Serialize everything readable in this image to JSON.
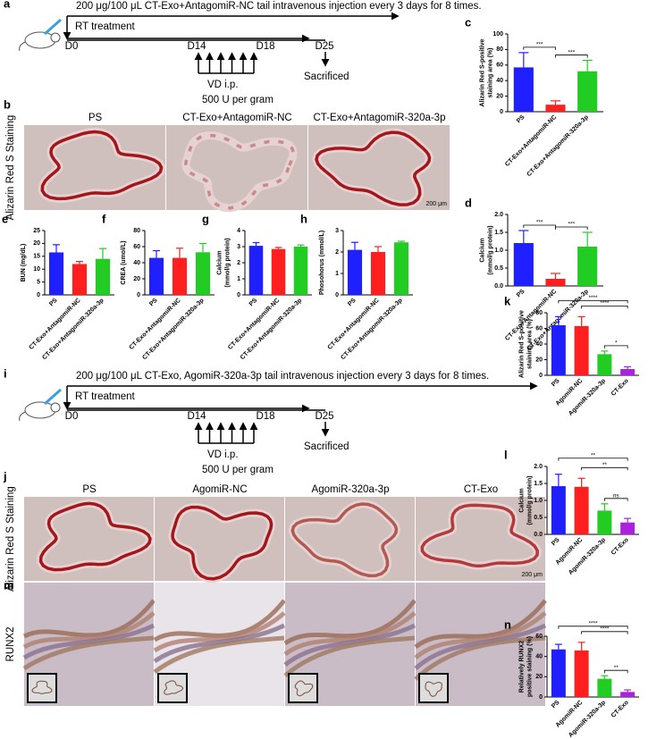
{
  "panel_a": {
    "label": "a",
    "injection": "200 μg/100 μL CT-Exo+AntagomiR-NC tail intravenous injection every 3 days for 8 times.",
    "treatment": "RT treatment",
    "days": [
      "D0",
      "D14",
      "D18",
      "D25"
    ],
    "vd": "VD i.p.",
    "dose": "500 U per gram",
    "end": "Sacrificed"
  },
  "panel_b": {
    "label": "b",
    "side": "Alizarin Red S Staining",
    "titles": [
      "PS",
      "CT-Exo+AntagomiR-NC",
      "CT-Exo+AntagomiR-320a-3p"
    ],
    "scale": "200 μm"
  },
  "panel_i": {
    "label": "i",
    "injection": "200 μg/100 μL CT-Exo, AgomiR-320a-3p tail intravenous injection every 3 days for 8 times.",
    "treatment": "RT treatment",
    "days": [
      "D0",
      "D14",
      "D18",
      "D25"
    ],
    "vd": "VD i.p.",
    "dose": "500 U per gram",
    "end": "Sacrificed"
  },
  "panel_j": {
    "label": "j",
    "side": "Alizarin Red S Staining",
    "titles": [
      "PS",
      "AgomiR-NC",
      "AgomiR-320a-3p",
      "CT-Exo"
    ],
    "scale": "200 μm"
  },
  "panel_m": {
    "label": "m",
    "side": "RUNX2"
  },
  "chart_data": [
    {
      "type": "bar",
      "label": "c",
      "ylabel": [
        "Alizarin Red S-positive",
        "staining area (%)"
      ],
      "categories": [
        "PS",
        "CT-Exo+AntagomiR-NC",
        "CT-Exo+AntagomiR-320a-3p"
      ],
      "values": [
        57,
        9,
        52
      ],
      "errors": [
        19,
        5,
        14
      ],
      "colors": [
        "#1f1fff",
        "#ff1f1f",
        "#22cc22"
      ],
      "ylim": [
        0,
        100
      ],
      "yticks": [
        0,
        20,
        40,
        60,
        80,
        100
      ],
      "comparisons": [
        {
          "groups": [
            "PS",
            "CT-Exo+AntagomiR-NC"
          ],
          "label": "***"
        },
        {
          "groups": [
            "CT-Exo+AntagomiR-NC",
            "CT-Exo+AntagomiR-320a-3p"
          ],
          "label": "***"
        }
      ]
    },
    {
      "type": "bar",
      "label": "d",
      "ylabel": [
        "Calcium",
        "(mmol/g protein)"
      ],
      "categories": [
        "PS",
        "CT-Exo+AntagomiR-NC",
        "CT-Exo+AntagomiR-320a-3p"
      ],
      "values": [
        1.2,
        0.2,
        1.1
      ],
      "errors": [
        0.35,
        0.15,
        0.4
      ],
      "colors": [
        "#1f1fff",
        "#ff1f1f",
        "#22cc22"
      ],
      "ylim": [
        0,
        2
      ],
      "yticks": [
        {
          "value": 0,
          "label": "0.0"
        },
        0.5,
        {
          "value": 1,
          "label": "1.0"
        },
        1.5,
        {
          "value": 2,
          "label": "2.0"
        }
      ],
      "comparisons": [
        {
          "groups": [
            "PS",
            "CT-Exo+AntagomiR-NC"
          ],
          "label": "***"
        },
        {
          "groups": [
            "CT-Exo+AntagomiR-NC",
            "CT-Exo+AntagomiR-320a-3p"
          ],
          "label": "***"
        }
      ]
    },
    {
      "type": "bar",
      "label": "e",
      "ylabel": [
        "BUN (mg/dL)"
      ],
      "categories": [
        "PS",
        "CT-Exo+AntagomiR-NC",
        "CT-Exo+AntagomiR-320a-3p"
      ],
      "values": [
        16.5,
        12,
        14
      ],
      "errors": [
        3,
        1,
        4
      ],
      "colors": [
        "#1f1fff",
        "#ff1f1f",
        "#22cc22"
      ],
      "ylim": [
        0,
        25
      ],
      "yticks": [
        0,
        5,
        10,
        15,
        20,
        25
      ],
      "comparisons": []
    },
    {
      "type": "bar",
      "label": "f",
      "ylabel": [
        "CREA (umol/L)"
      ],
      "categories": [
        "PS",
        "CT-Exo+AntagomiR-NC",
        "CT-Exo+AntagomiR-320a-3p"
      ],
      "values": [
        46,
        46,
        53
      ],
      "errors": [
        9,
        12,
        11
      ],
      "colors": [
        "#1f1fff",
        "#ff1f1f",
        "#22cc22"
      ],
      "ylim": [
        0,
        80
      ],
      "yticks": [
        0,
        20,
        40,
        60,
        80
      ],
      "comparisons": []
    },
    {
      "type": "bar",
      "label": "g",
      "ylabel": [
        "Calcium",
        "(mmol/g protein)"
      ],
      "categories": [
        "PS",
        "CT-Exo+AntagomiR-NC",
        "CT-Exo+AntagomiR-320a-3p"
      ],
      "values": [
        3.05,
        2.85,
        3.0
      ],
      "errors": [
        0.2,
        0.1,
        0.1
      ],
      "colors": [
        "#1f1fff",
        "#ff1f1f",
        "#22cc22"
      ],
      "ylim": [
        0,
        4
      ],
      "yticks": [
        0,
        1,
        2,
        3,
        4
      ],
      "comparisons": []
    },
    {
      "type": "bar",
      "label": "h",
      "ylabel": [
        "Phosohorus (mmol/L)"
      ],
      "categories": [
        "PS",
        "CT-Exo+AntagomiR-NC",
        "CT-Exo+AntagomiR-320a-3p"
      ],
      "values": [
        2.1,
        2.0,
        2.45
      ],
      "errors": [
        0.35,
        0.25,
        0.05
      ],
      "colors": [
        "#1f1fff",
        "#ff1f1f",
        "#22cc22"
      ],
      "ylim": [
        0,
        3
      ],
      "yticks": [
        0,
        1,
        2,
        3
      ],
      "comparisons": []
    },
    {
      "type": "bar",
      "label": "k",
      "ylabel": [
        "Alizarin Red S-positive",
        "staining area (%)"
      ],
      "categories": [
        "PS",
        "AgomiR-NC",
        "AgomiR-320a-3p",
        "CT-Exo"
      ],
      "values": [
        64,
        63,
        27,
        8
      ],
      "errors": [
        11,
        12,
        4,
        3
      ],
      "colors": [
        "#1f1fff",
        "#ff1f1f",
        "#22cc22",
        "#aa22dd"
      ],
      "ylim": [
        0,
        80
      ],
      "yticks": [
        0,
        20,
        40,
        60,
        80
      ],
      "comparisons": [
        {
          "groups": [
            "PS",
            "CT-Exo"
          ],
          "label": "****"
        },
        {
          "groups": [
            "AgomiR-NC",
            "CT-Exo"
          ],
          "label": "****"
        },
        {
          "groups": [
            "AgomiR-320a-3p",
            "CT-Exo"
          ],
          "label": "*"
        }
      ]
    },
    {
      "type": "bar",
      "label": "l",
      "ylabel": [
        "Calcium",
        "(mmol/g protein)"
      ],
      "categories": [
        "PS",
        "AgomiR-NC",
        "AgomiR-320a-3p",
        "CT-Exo"
      ],
      "values": [
        1.42,
        1.4,
        0.7,
        0.35
      ],
      "errors": [
        0.35,
        0.25,
        0.2,
        0.12
      ],
      "colors": [
        "#1f1fff",
        "#ff1f1f",
        "#22cc22",
        "#aa22dd"
      ],
      "ylim": [
        0,
        2
      ],
      "yticks": [
        {
          "value": 0,
          "label": "0.0"
        },
        0.5,
        {
          "value": 1,
          "label": "1.0"
        },
        1.5,
        {
          "value": 2,
          "label": "2.0"
        }
      ],
      "comparisons": [
        {
          "groups": [
            "PS",
            "CT-Exo"
          ],
          "label": "**"
        },
        {
          "groups": [
            "AgomiR-NC",
            "CT-Exo"
          ],
          "label": "**"
        },
        {
          "groups": [
            "AgomiR-320a-3p",
            "CT-Exo"
          ],
          "label": "ns"
        }
      ]
    },
    {
      "type": "bar",
      "label": "n",
      "ylabel": [
        "Relatively RUNX2",
        "positive staining (%)"
      ],
      "categories": [
        "PS",
        "AgomiR-NC",
        "AgomiR-320a-3p",
        "CT-Exo"
      ],
      "values": [
        47,
        46,
        18,
        5
      ],
      "errors": [
        5,
        8,
        3,
        2
      ],
      "colors": [
        "#1f1fff",
        "#ff1f1f",
        "#22cc22",
        "#aa22dd"
      ],
      "ylim": [
        0,
        60
      ],
      "yticks": [
        0,
        20,
        40,
        60
      ],
      "comparisons": [
        {
          "groups": [
            "PS",
            "CT-Exo"
          ],
          "label": "****"
        },
        {
          "groups": [
            "AgomiR-NC",
            "CT-Exo"
          ],
          "label": "****"
        },
        {
          "groups": [
            "AgomiR-320a-3p",
            "CT-Exo"
          ],
          "label": "**"
        }
      ]
    }
  ]
}
